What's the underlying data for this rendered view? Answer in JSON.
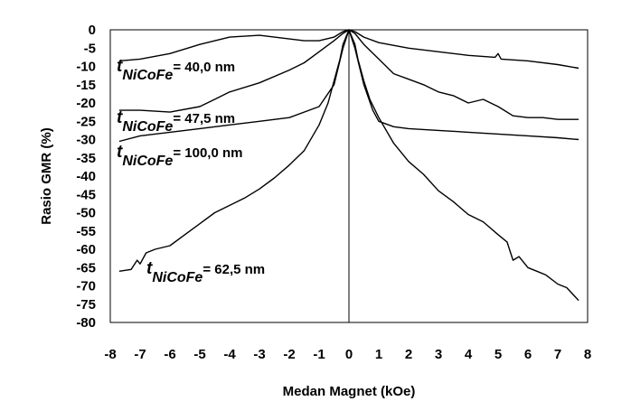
{
  "chart_data": {
    "type": "line",
    "title": "",
    "xlabel": "Medan Magnet (kOe)",
    "ylabel": "Rasio GMR (%)",
    "xlim": [
      -8,
      8
    ],
    "ylim": [
      -80,
      0
    ],
    "xticks": [
      -8,
      -7,
      -6,
      -5,
      -4,
      -3,
      -2,
      -1,
      0,
      1,
      2,
      3,
      4,
      5,
      6,
      7,
      8
    ],
    "yticks": [
      0,
      -5,
      -10,
      -15,
      -20,
      -25,
      -30,
      -35,
      -40,
      -45,
      -50,
      -55,
      -60,
      -65,
      -70,
      -75,
      -80
    ],
    "grid": false,
    "legend": "none",
    "series": [
      {
        "label": "t NiCoFe = 40,0 nm",
        "x": [
          -7.7,
          -7,
          -6,
          -5,
          -4,
          -3,
          -2,
          -1.5,
          -1,
          -0.5,
          -0.2,
          0,
          0.2,
          0.5,
          1,
          2,
          3,
          4,
          4.9,
          5,
          5.1,
          6,
          7,
          7.7
        ],
        "y": [
          -8.5,
          -8,
          -6.5,
          -4,
          -2,
          -1.5,
          -2.5,
          -3,
          -3,
          -2,
          -0.5,
          0,
          -0.5,
          -2,
          -3.5,
          -5,
          -6,
          -7,
          -7.5,
          -6.5,
          -8,
          -8.5,
          -9.5,
          -10.5
        ]
      },
      {
        "label": "t NiCoFe = 47,5 nm",
        "x": [
          -7.7,
          -7,
          -6,
          -5,
          -4.5,
          -4,
          -3,
          -2,
          -1.5,
          -1,
          -0.5,
          -0.2,
          0,
          0.2,
          0.5,
          1,
          1.5,
          2,
          2.5,
          3,
          3.5,
          4,
          4.5,
          5,
          5.5,
          6,
          6.5,
          7,
          7.7
        ],
        "y": [
          -22,
          -22,
          -22.5,
          -21,
          -19,
          -17,
          -14.5,
          -11,
          -9,
          -6,
          -3,
          -1,
          0,
          -1,
          -4,
          -8,
          -12,
          -13.5,
          -15,
          -17,
          -18,
          -20,
          -19,
          -21,
          -23.5,
          -24,
          -24,
          -24.5,
          -24.5
        ]
      },
      {
        "label": "t NiCoFe = 100,0 nm",
        "x": [
          -7.7,
          -7,
          -6,
          -5,
          -4,
          -3,
          -2,
          -1,
          -0.5,
          -0.2,
          0,
          0.2,
          0.5,
          0.8,
          1,
          1.5,
          2,
          3,
          4,
          5,
          6,
          7,
          7.7
        ],
        "y": [
          -30.5,
          -29,
          -28,
          -27,
          -26,
          -25,
          -24,
          -21,
          -15,
          -5,
          0,
          -5,
          -15,
          -22,
          -25,
          -26.5,
          -27,
          -27.5,
          -28,
          -28.5,
          -29,
          -29.5,
          -30
        ]
      },
      {
        "label": "t NiCoFe = 62,5 nm",
        "x": [
          -7.7,
          -7.3,
          -7.1,
          -7,
          -6.8,
          -6.5,
          -6,
          -5.5,
          -5,
          -4.5,
          -4,
          -3.5,
          -3,
          -2.5,
          -2,
          -1.5,
          -1,
          -0.7,
          -0.5,
          -0.3,
          -0.2,
          0,
          0.2,
          0.3,
          0.5,
          0.7,
          1,
          1.5,
          2,
          2.5,
          3,
          3.5,
          4,
          4.5,
          5,
          5.3,
          5.5,
          5.7,
          6,
          6.3,
          6.6,
          7,
          7.3,
          7.7
        ],
        "y": [
          -66,
          -65.5,
          -63,
          -64,
          -61,
          -60,
          -59,
          -56,
          -53,
          -50,
          -48,
          -46,
          -43.5,
          -40.5,
          -37,
          -33,
          -26,
          -20,
          -14,
          -8,
          -4,
          0,
          -4,
          -8,
          -14,
          -19,
          -24,
          -31,
          -36,
          -39.5,
          -44,
          -47,
          -50.5,
          -52.5,
          -56,
          -58,
          -63,
          -62,
          -65,
          -66,
          -67,
          -69.5,
          -70.5,
          -74
        ]
      }
    ],
    "annotations": [
      {
        "t": "t",
        "sub": "NiCoFe",
        "value": "= 40,0 nm"
      },
      {
        "t": "t",
        "sub": "NiCoFe",
        "value": "= 47,5 nm"
      },
      {
        "t": "t",
        "sub": "NiCoFe",
        "value": "= 100,0 nm"
      },
      {
        "t": "t",
        "sub": "NiCoFe",
        "value": "= 62,5 nm"
      }
    ]
  }
}
